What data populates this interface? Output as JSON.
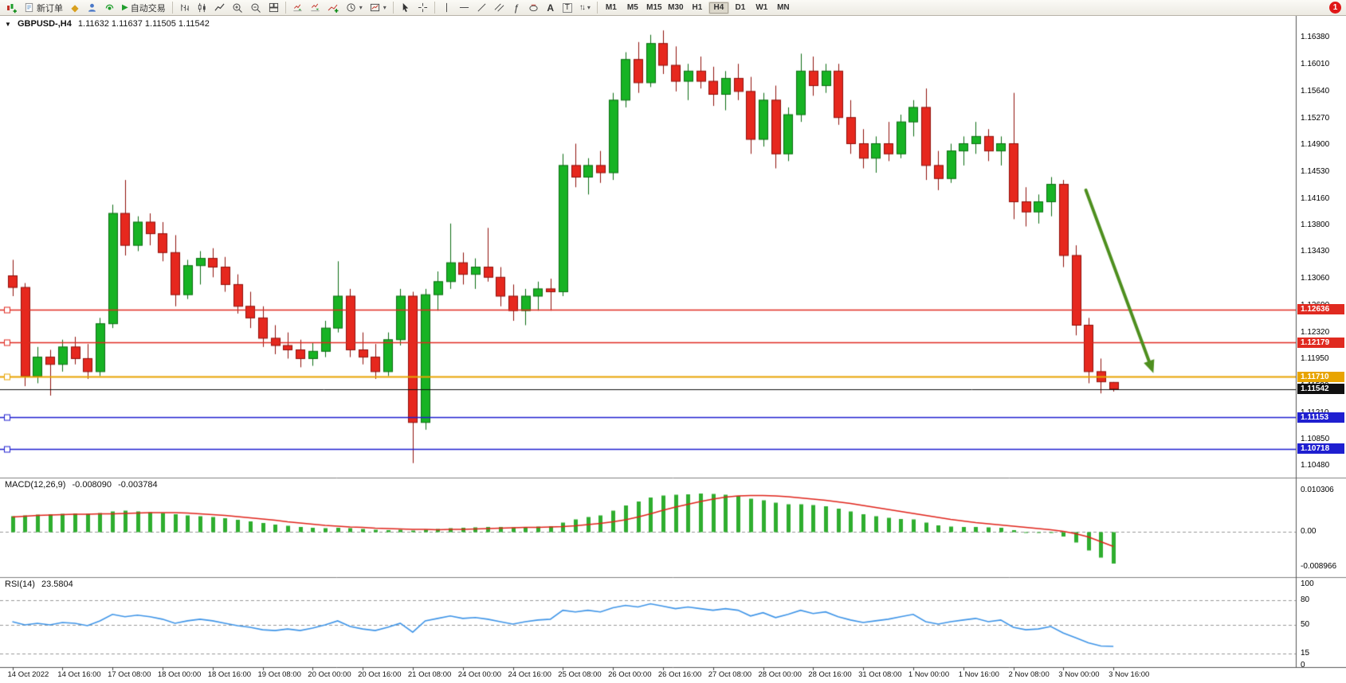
{
  "toolbar": {
    "new_order_label": "新订单",
    "auto_trading_label": "自动交易",
    "fibo_tool": "ƒ",
    "text_tool": "A",
    "label_tool": "T",
    "timeframes": [
      "M1",
      "M5",
      "M15",
      "M30",
      "H1",
      "H4",
      "D1",
      "W1",
      "MN"
    ],
    "active_timeframe": "H4",
    "notification_count": "1"
  },
  "icons": {
    "gem": "◆",
    "play": "▶",
    "caret": "▾",
    "collapse": "▼",
    "arrows": "↑↓"
  },
  "chart": {
    "symbol": "GBPUSD-,H4",
    "ohlc": "1.11632 1.11637 1.11505 1.11542",
    "price_axis_labels": [
      "1.16380",
      "1.16010",
      "1.15640",
      "1.15270",
      "1.14900",
      "1.14530",
      "1.14160",
      "1.13800",
      "1.13430",
      "1.13060",
      "1.12690",
      "1.12320",
      "1.11950",
      "1.11580",
      "1.11210",
      "1.10850",
      "1.10480"
    ],
    "hlines": [
      {
        "label": "1.12636",
        "price": 1.12636,
        "color": "#e02a20",
        "width": 1.3,
        "handle": true
      },
      {
        "label": "1.12179",
        "price": 1.12179,
        "color": "#e02a20",
        "width": 1.3,
        "handle": true
      },
      {
        "label": "1.11710",
        "price": 1.1171,
        "color": "#e8a400",
        "width": 2,
        "handle": true
      },
      {
        "label": "1.11542",
        "price": 1.11542,
        "color": "#101010",
        "width": 1,
        "handle": false,
        "current": true
      },
      {
        "label": "1.11153",
        "price": 1.11153,
        "color": "#1f1fd0",
        "width": 1.3,
        "handle": true
      },
      {
        "label": "1.10718",
        "price": 1.10718,
        "color": "#1f1fd0",
        "width": 1.3,
        "handle": true
      }
    ]
  },
  "indicators": {
    "macd": {
      "name": "MACD(12,26,9)",
      "value_main": "-0.008090",
      "value_signal": "-0.003784",
      "axis_labels": [
        "0.010306",
        "0.00",
        "-0.008966"
      ]
    },
    "rsi": {
      "name": "RSI(14)",
      "value": "23.5804",
      "axis_labels": [
        "100",
        "80",
        "50",
        "15",
        "0"
      ],
      "levels": [
        80,
        50,
        15
      ]
    }
  },
  "chart_data": {
    "type": "candlestick",
    "title": "GBPUSD- H4",
    "ylim": [
      1.1032,
      1.1668
    ],
    "x_labels": [
      "14 Oct 2022",
      "14 Oct 16:00",
      "17 Oct 08:00",
      "18 Oct 00:00",
      "18 Oct 16:00",
      "19 Oct 08:00",
      "20 Oct 00:00",
      "20 Oct 16:00",
      "21 Oct 08:00",
      "24 Oct 00:00",
      "24 Oct 16:00",
      "25 Oct 08:00",
      "26 Oct 00:00",
      "26 Oct 16:00",
      "27 Oct 08:00",
      "28 Oct 00:00",
      "28 Oct 16:00",
      "31 Oct 08:00",
      "1 Nov 00:00",
      "1 Nov 16:00",
      "2 Nov 08:00",
      "3 Nov 00:00",
      "3 Nov 16:00"
    ],
    "x_label_step": 4,
    "candles": [
      [
        1.131,
        1.1332,
        1.1282,
        1.1294
      ],
      [
        1.1294,
        1.13,
        1.1158,
        1.1172
      ],
      [
        1.1172,
        1.1212,
        1.1162,
        1.1198
      ],
      [
        1.1198,
        1.1208,
        1.1145,
        1.1188
      ],
      [
        1.1188,
        1.1222,
        1.1178,
        1.1212
      ],
      [
        1.1212,
        1.1226,
        1.1188,
        1.1196
      ],
      [
        1.1196,
        1.1216,
        1.1168,
        1.1178
      ],
      [
        1.1178,
        1.1252,
        1.1172,
        1.1244
      ],
      [
        1.1244,
        1.1408,
        1.1238,
        1.1396
      ],
      [
        1.1396,
        1.1442,
        1.1338,
        1.1352
      ],
      [
        1.1352,
        1.1392,
        1.1344,
        1.1384
      ],
      [
        1.1384,
        1.1396,
        1.1352,
        1.1368
      ],
      [
        1.1368,
        1.1384,
        1.133,
        1.1342
      ],
      [
        1.1342,
        1.1366,
        1.1268,
        1.1284
      ],
      [
        1.1284,
        1.1332,
        1.1278,
        1.1324
      ],
      [
        1.1324,
        1.1344,
        1.1298,
        1.1334
      ],
      [
        1.1334,
        1.1348,
        1.1308,
        1.1322
      ],
      [
        1.1322,
        1.1336,
        1.1288,
        1.1298
      ],
      [
        1.1298,
        1.1312,
        1.1258,
        1.1268
      ],
      [
        1.1268,
        1.1288,
        1.1238,
        1.1252
      ],
      [
        1.1252,
        1.1268,
        1.1212,
        1.1224
      ],
      [
        1.1224,
        1.1242,
        1.1202,
        1.1214
      ],
      [
        1.1214,
        1.1232,
        1.1196,
        1.1208
      ],
      [
        1.1208,
        1.1222,
        1.1184,
        1.1196
      ],
      [
        1.1196,
        1.1218,
        1.1186,
        1.1206
      ],
      [
        1.1206,
        1.1248,
        1.1198,
        1.1238
      ],
      [
        1.1238,
        1.133,
        1.1232,
        1.1282
      ],
      [
        1.1282,
        1.1292,
        1.1198,
        1.1208
      ],
      [
        1.1208,
        1.1232,
        1.1188,
        1.1198
      ],
      [
        1.1198,
        1.1216,
        1.1168,
        1.1178
      ],
      [
        1.1178,
        1.1232,
        1.1172,
        1.1222
      ],
      [
        1.1222,
        1.1292,
        1.1214,
        1.1282
      ],
      [
        1.1282,
        1.1288,
        1.1052,
        1.1108
      ],
      [
        1.1108,
        1.1292,
        1.1098,
        1.1284
      ],
      [
        1.1284,
        1.1316,
        1.1262,
        1.1302
      ],
      [
        1.1302,
        1.1382,
        1.1292,
        1.1328
      ],
      [
        1.1328,
        1.1342,
        1.1298,
        1.1312
      ],
      [
        1.1312,
        1.1334,
        1.1292,
        1.1322
      ],
      [
        1.1322,
        1.1376,
        1.1302,
        1.1308
      ],
      [
        1.1308,
        1.1322,
        1.1268,
        1.1282
      ],
      [
        1.1282,
        1.1298,
        1.1248,
        1.1262
      ],
      [
        1.1262,
        1.1292,
        1.1242,
        1.1282
      ],
      [
        1.1282,
        1.1302,
        1.1262,
        1.1292
      ],
      [
        1.1292,
        1.1306,
        1.1262,
        1.1288
      ],
      [
        1.1288,
        1.1478,
        1.1282,
        1.1462
      ],
      [
        1.1462,
        1.1492,
        1.1432,
        1.1446
      ],
      [
        1.1446,
        1.1472,
        1.1422,
        1.1462
      ],
      [
        1.1462,
        1.1482,
        1.1438,
        1.1452
      ],
      [
        1.1452,
        1.1562,
        1.1442,
        1.1552
      ],
      [
        1.1552,
        1.1618,
        1.1542,
        1.1608
      ],
      [
        1.1608,
        1.1632,
        1.1562,
        1.1576
      ],
      [
        1.1576,
        1.1642,
        1.157,
        1.163
      ],
      [
        1.163,
        1.1648,
        1.1588,
        1.16
      ],
      [
        1.16,
        1.1626,
        1.1564,
        1.1578
      ],
      [
        1.1578,
        1.1602,
        1.1552,
        1.1592
      ],
      [
        1.1592,
        1.1612,
        1.1568,
        1.1578
      ],
      [
        1.1578,
        1.1598,
        1.1544,
        1.156
      ],
      [
        1.156,
        1.1592,
        1.1538,
        1.1582
      ],
      [
        1.1582,
        1.1602,
        1.1552,
        1.1564
      ],
      [
        1.1564,
        1.1584,
        1.1478,
        1.1498
      ],
      [
        1.1498,
        1.1562,
        1.1488,
        1.1552
      ],
      [
        1.1552,
        1.1572,
        1.1458,
        1.1478
      ],
      [
        1.1478,
        1.1542,
        1.1468,
        1.1532
      ],
      [
        1.1532,
        1.1616,
        1.1522,
        1.1592
      ],
      [
        1.1592,
        1.1612,
        1.1558,
        1.1572
      ],
      [
        1.1572,
        1.1602,
        1.1562,
        1.1592
      ],
      [
        1.1592,
        1.1602,
        1.1518,
        1.1528
      ],
      [
        1.1528,
        1.1552,
        1.1478,
        1.1492
      ],
      [
        1.1492,
        1.1512,
        1.1458,
        1.1472
      ],
      [
        1.1472,
        1.1502,
        1.1452,
        1.1492
      ],
      [
        1.1492,
        1.1522,
        1.1468,
        1.1478
      ],
      [
        1.1478,
        1.1532,
        1.1472,
        1.1522
      ],
      [
        1.1522,
        1.1552,
        1.1502,
        1.1542
      ],
      [
        1.1542,
        1.1568,
        1.1442,
        1.1462
      ],
      [
        1.1462,
        1.1482,
        1.1428,
        1.1444
      ],
      [
        1.1444,
        1.1492,
        1.1438,
        1.1482
      ],
      [
        1.1482,
        1.1502,
        1.1462,
        1.1492
      ],
      [
        1.1492,
        1.1522,
        1.1478,
        1.1502
      ],
      [
        1.1502,
        1.1512,
        1.1468,
        1.1482
      ],
      [
        1.1482,
        1.1502,
        1.1462,
        1.1492
      ],
      [
        1.1492,
        1.1562,
        1.1388,
        1.1412
      ],
      [
        1.1412,
        1.1432,
        1.1378,
        1.1398
      ],
      [
        1.1398,
        1.1422,
        1.1382,
        1.1412
      ],
      [
        1.1412,
        1.1446,
        1.1392,
        1.1436
      ],
      [
        1.1436,
        1.1442,
        1.1322,
        1.1338
      ],
      [
        1.1338,
        1.1352,
        1.1228,
        1.1242
      ],
      [
        1.1242,
        1.1252,
        1.1162,
        1.1178
      ],
      [
        1.1178,
        1.1196,
        1.1148,
        1.1164
      ],
      [
        1.11632,
        1.11637,
        1.11505,
        1.11542
      ]
    ],
    "colors": {
      "up": "#17b324",
      "up_border": "#0b6d12",
      "down": "#e6281e",
      "down_border": "#8f0f0a",
      "macd_hist": "#2fae2f",
      "macd_signal": "#e0241b",
      "rsi_line": "#3f95e8",
      "arrow": "#4e8f1f"
    },
    "series": [
      {
        "name": "MACD histogram",
        "type": "bar",
        "ylim": [
          -0.0115,
          0.0135
        ],
        "values": [
          0.0038,
          0.004,
          0.0042,
          0.0043,
          0.0044,
          0.0045,
          0.0044,
          0.0046,
          0.005,
          0.0052,
          0.005,
          0.0048,
          0.0046,
          0.0043,
          0.004,
          0.0038,
          0.0036,
          0.0033,
          0.0029,
          0.0025,
          0.0021,
          0.0017,
          0.0014,
          0.0011,
          0.0009,
          0.0008,
          0.0009,
          0.0008,
          0.0006,
          0.0004,
          0.0003,
          0.0004,
          0.0002,
          0.0004,
          0.0006,
          0.0008,
          0.0009,
          0.001,
          0.0011,
          0.0011,
          0.001,
          0.0011,
          0.0012,
          0.0013,
          0.0022,
          0.003,
          0.0036,
          0.004,
          0.0052,
          0.0065,
          0.0075,
          0.0085,
          0.009,
          0.0092,
          0.0093,
          0.0095,
          0.0094,
          0.0092,
          0.0089,
          0.0082,
          0.0078,
          0.0072,
          0.0068,
          0.0068,
          0.0066,
          0.0063,
          0.0057,
          0.005,
          0.0043,
          0.0038,
          0.0034,
          0.0031,
          0.003,
          0.0022,
          0.0015,
          0.0012,
          0.0011,
          0.0011,
          0.001,
          0.0009,
          0.0003,
          -0.0002,
          -0.0004,
          -0.0003,
          -0.0013,
          -0.0028,
          -0.0048,
          -0.0066,
          -0.00809
        ]
      },
      {
        "name": "MACD signal",
        "type": "line",
        "values": [
          0.0036,
          0.0038,
          0.004,
          0.0041,
          0.0042,
          0.0043,
          0.0043,
          0.0044,
          0.0044,
          0.0045,
          0.0046,
          0.0047,
          0.0047,
          0.0047,
          0.0046,
          0.0044,
          0.0042,
          0.004,
          0.0037,
          0.0034,
          0.0031,
          0.0028,
          0.0024,
          0.0021,
          0.0018,
          0.0015,
          0.0013,
          0.0011,
          0.001,
          0.0008,
          0.0007,
          0.0006,
          0.0005,
          0.0005,
          0.0004,
          0.0005,
          0.0005,
          0.0006,
          0.0007,
          0.0008,
          0.0009,
          0.001,
          0.001,
          0.0011,
          0.0012,
          0.0014,
          0.0017,
          0.002,
          0.0024,
          0.0029,
          0.0036,
          0.0044,
          0.0053,
          0.0061,
          0.0068,
          0.0075,
          0.0081,
          0.0086,
          0.0089,
          0.009,
          0.009,
          0.0089,
          0.0087,
          0.0084,
          0.0081,
          0.0078,
          0.0074,
          0.007,
          0.0065,
          0.006,
          0.0055,
          0.005,
          0.0045,
          0.004,
          0.0035,
          0.003,
          0.0026,
          0.0022,
          0.0019,
          0.0016,
          0.0013,
          0.001,
          0.0007,
          0.0004,
          0.0,
          -0.0006,
          -0.0014,
          -0.0026,
          -0.003784
        ]
      },
      {
        "name": "RSI(14)",
        "type": "line",
        "ylim": [
          0,
          100
        ],
        "values": [
          54,
          50,
          52,
          50,
          53,
          52,
          49,
          55,
          63,
          60,
          62,
          60,
          57,
          52,
          55,
          57,
          55,
          52,
          49,
          47,
          44,
          43,
          45,
          43,
          46,
          50,
          55,
          48,
          45,
          43,
          47,
          52,
          41,
          55,
          58,
          61,
          58,
          59,
          57,
          54,
          51,
          54,
          56,
          57,
          68,
          66,
          68,
          66,
          71,
          74,
          72,
          76,
          73,
          70,
          72,
          70,
          68,
          70,
          68,
          61,
          65,
          59,
          63,
          68,
          64,
          66,
          60,
          56,
          53,
          55,
          57,
          60,
          63,
          54,
          51,
          54,
          56,
          58,
          54,
          56,
          47,
          44,
          45,
          48,
          40,
          34,
          28,
          24,
          23.5804
        ]
      }
    ],
    "annotations": [
      {
        "type": "arrow",
        "from_index": 85.8,
        "from_price": 1.1428,
        "to_index": 91.2,
        "to_price": 1.1176,
        "color": "#4e8f1f"
      }
    ]
  }
}
